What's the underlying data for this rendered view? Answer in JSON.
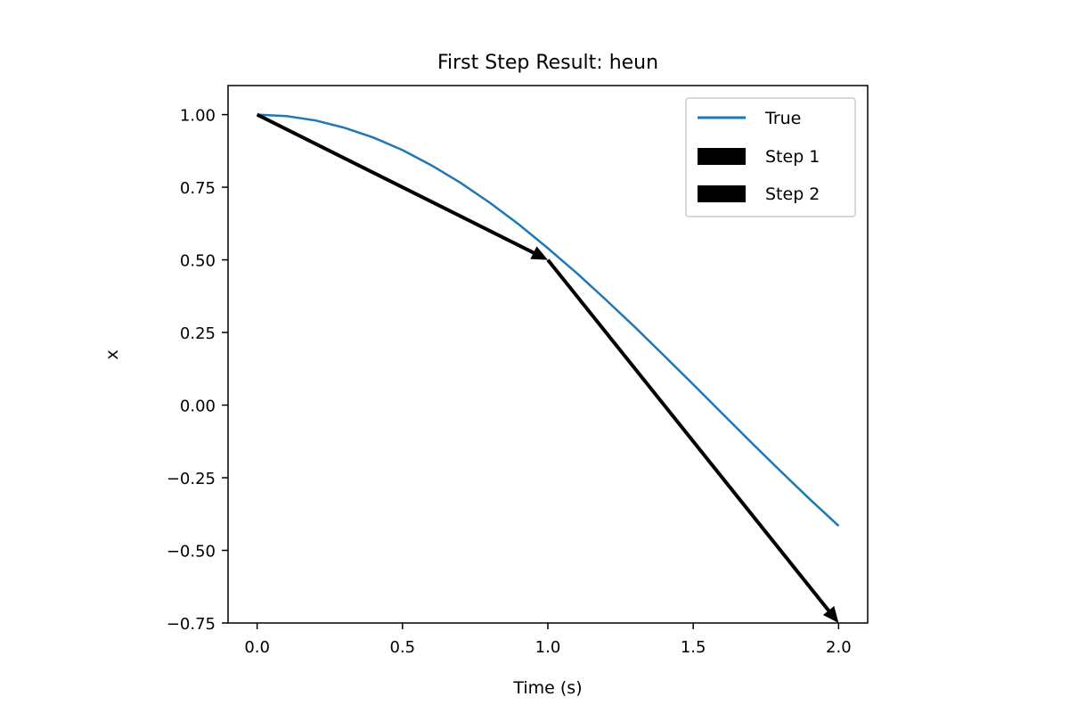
{
  "chart_data": {
    "type": "line",
    "title": "First Step Result: heun",
    "xlabel": "Time (s)",
    "ylabel": "x",
    "xlim": [
      -0.1,
      2.1
    ],
    "ylim": [
      -0.75,
      1.1
    ],
    "x_ticks": [
      0.0,
      0.5,
      1.0,
      1.5,
      2.0
    ],
    "x_tick_labels": [
      "0.0",
      "0.5",
      "1.0",
      "1.5",
      "2.0"
    ],
    "y_ticks": [
      1.0,
      0.75,
      0.5,
      0.25,
      0.0,
      -0.25,
      -0.5,
      -0.75
    ],
    "y_tick_labels": [
      "1.00",
      "0.75",
      "0.50",
      "0.25",
      "0.00",
      "−0.25",
      "−0.50",
      "−0.75"
    ],
    "grid": false,
    "legend_position": "top-right",
    "series": [
      {
        "name": "True",
        "kind": "line",
        "color": "#1f77b4",
        "x": [
          0.0,
          0.1,
          0.2,
          0.3,
          0.4,
          0.5,
          0.6,
          0.7,
          0.8,
          0.9,
          1.0,
          1.1,
          1.2,
          1.3,
          1.4,
          1.5,
          1.6,
          1.7,
          1.8,
          1.9,
          2.0
        ],
        "y": [
          1.0,
          0.995,
          0.98,
          0.955,
          0.921,
          0.878,
          0.825,
          0.765,
          0.697,
          0.622,
          0.54,
          0.454,
          0.362,
          0.268,
          0.17,
          0.071,
          -0.029,
          -0.129,
          -0.227,
          -0.323,
          -0.416
        ]
      },
      {
        "name": "Step 1",
        "kind": "arrow",
        "color": "#000000",
        "x": [
          0.0,
          1.0
        ],
        "y": [
          1.0,
          0.5
        ]
      },
      {
        "name": "Step 2",
        "kind": "arrow",
        "color": "#000000",
        "x": [
          1.0,
          2.0
        ],
        "y": [
          0.5,
          -0.75
        ]
      }
    ]
  }
}
